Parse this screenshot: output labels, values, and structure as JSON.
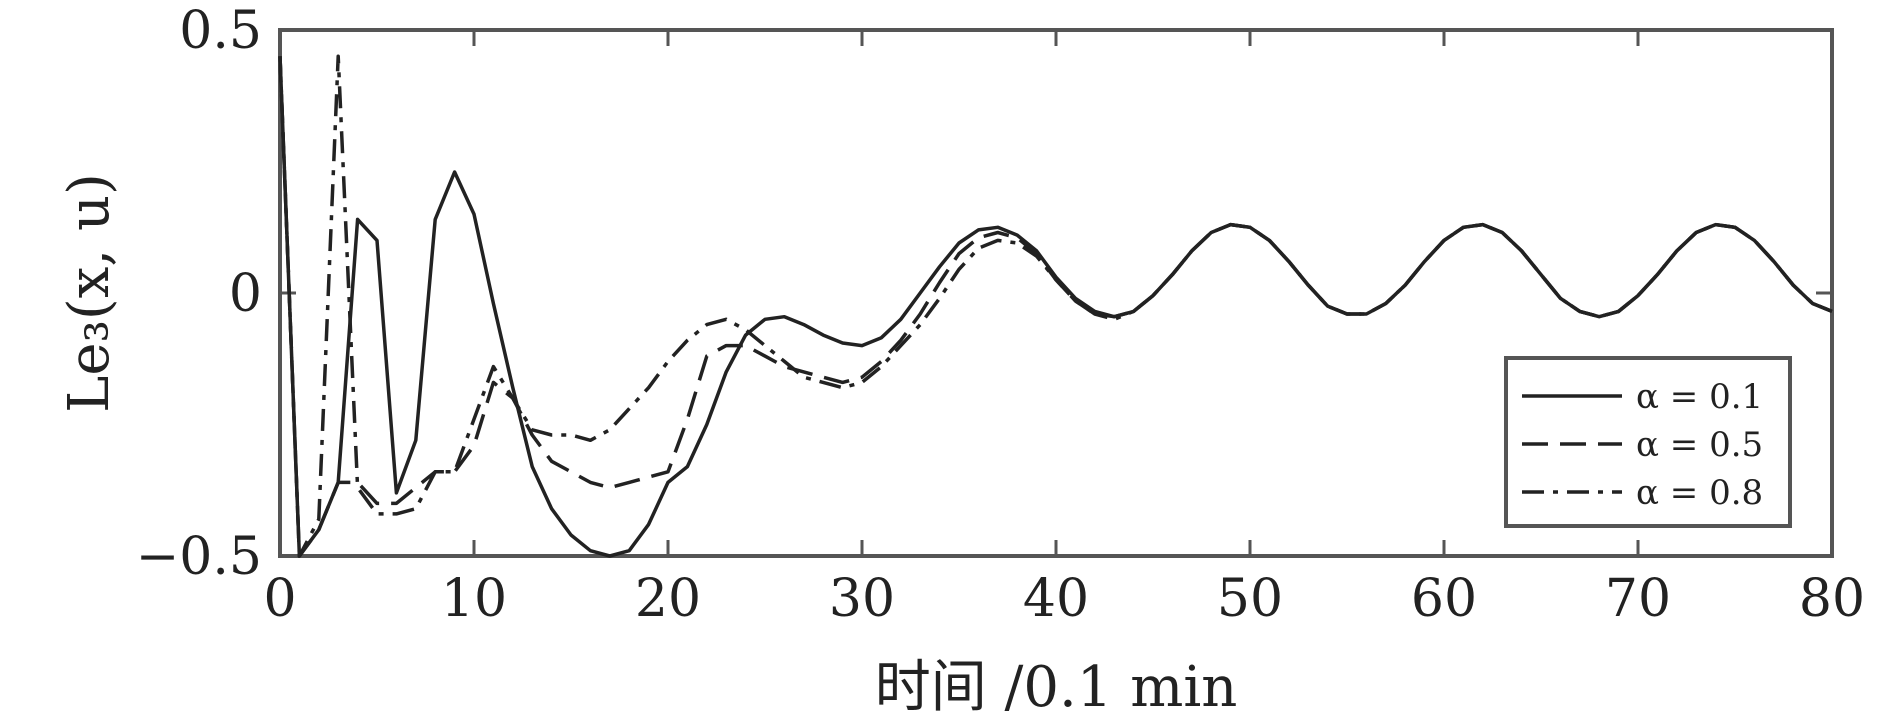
{
  "chart_data": {
    "type": "line",
    "xlabel": "时间 /0.1 min",
    "ylabel": "Le₃(x, u)",
    "xlim": [
      0,
      80
    ],
    "ylim": [
      -0.5,
      0.5
    ],
    "xticks": [
      0,
      10,
      20,
      30,
      40,
      50,
      60,
      70,
      80
    ],
    "xtick_labels": [
      "0",
      "10",
      "20",
      "30",
      "40",
      "50",
      "60",
      "70",
      "80"
    ],
    "yticks": [
      -0.5,
      0,
      0.5
    ],
    "ytick_labels": [
      "−0.5",
      "0",
      "0.5"
    ],
    "grid": false,
    "legend_position": "right",
    "series": [
      {
        "name": "α = 0.1",
        "style": "solid",
        "x": [
          0,
          1,
          2,
          3,
          4,
          5,
          6,
          7,
          8,
          9,
          10,
          11,
          12,
          13,
          14,
          15,
          16,
          17,
          18,
          19,
          20,
          21,
          22,
          23,
          24,
          25,
          26,
          27,
          28,
          29,
          30,
          31,
          32,
          33,
          34,
          35,
          36,
          37,
          38,
          39,
          40,
          41,
          42,
          43,
          44,
          45,
          46,
          47,
          48,
          49,
          50,
          51,
          52,
          53,
          54,
          55,
          56,
          57,
          58,
          59,
          60,
          61,
          62,
          63,
          64,
          65,
          66,
          67,
          68,
          69,
          70,
          71,
          72,
          73,
          74,
          75,
          76,
          77,
          78,
          79,
          80
        ],
        "values": [
          0.45,
          -0.5,
          -0.45,
          -0.36,
          0.14,
          0.1,
          -0.38,
          -0.28,
          0.14,
          0.23,
          0.15,
          -0.02,
          -0.18,
          -0.33,
          -0.41,
          -0.46,
          -0.49,
          -0.5,
          -0.49,
          -0.44,
          -0.36,
          -0.33,
          -0.25,
          -0.15,
          -0.08,
          -0.05,
          -0.045,
          -0.06,
          -0.08,
          -0.095,
          -0.1,
          -0.085,
          -0.05,
          0.0,
          0.05,
          0.095,
          0.12,
          0.125,
          0.11,
          0.08,
          0.03,
          -0.01,
          -0.035,
          -0.045,
          -0.035,
          -0.005,
          0.035,
          0.08,
          0.115,
          0.13,
          0.125,
          0.1,
          0.06,
          0.015,
          -0.025,
          -0.04,
          -0.04,
          -0.02,
          0.015,
          0.06,
          0.1,
          0.125,
          0.13,
          0.115,
          0.08,
          0.035,
          -0.01,
          -0.035,
          -0.045,
          -0.035,
          -0.005,
          0.035,
          0.08,
          0.115,
          0.13,
          0.125,
          0.1,
          0.06,
          0.015,
          -0.02,
          -0.035
        ]
      },
      {
        "name": "α = 0.5",
        "style": "dashed",
        "x": [
          0,
          1,
          2,
          3,
          4,
          5,
          6,
          7,
          8,
          9,
          10,
          11,
          12,
          13,
          14,
          15,
          16,
          17,
          18,
          19,
          20,
          21,
          22,
          23,
          24,
          25,
          26,
          27,
          28,
          29,
          30,
          31,
          32,
          33,
          34,
          35,
          36,
          37,
          38,
          39,
          40,
          41,
          42,
          43,
          44,
          45,
          46,
          47,
          48,
          49,
          50,
          51,
          52,
          53,
          54,
          55,
          56,
          57,
          58,
          59,
          60,
          61,
          62,
          63,
          64,
          65,
          66,
          67,
          68,
          69,
          70,
          71,
          72,
          73,
          74,
          75,
          76,
          77,
          78,
          79,
          80
        ],
        "values": [
          0.45,
          -0.5,
          -0.45,
          -0.36,
          -0.36,
          -0.4,
          -0.4,
          -0.37,
          -0.34,
          -0.34,
          -0.29,
          -0.17,
          -0.2,
          -0.27,
          -0.32,
          -0.34,
          -0.36,
          -0.37,
          -0.36,
          -0.35,
          -0.34,
          -0.24,
          -0.12,
          -0.1,
          -0.1,
          -0.12,
          -0.14,
          -0.15,
          -0.16,
          -0.17,
          -0.16,
          -0.13,
          -0.09,
          -0.04,
          0.02,
          0.075,
          0.105,
          0.115,
          0.105,
          0.075,
          0.025,
          -0.015,
          -0.04,
          -0.045,
          -0.035,
          -0.005,
          0.035,
          0.08,
          0.115,
          0.13,
          0.125,
          0.1,
          0.06,
          0.015,
          -0.025,
          -0.04,
          -0.04,
          -0.02,
          0.015,
          0.06,
          0.1,
          0.125,
          0.13,
          0.115,
          0.08,
          0.035,
          -0.01,
          -0.035,
          -0.045,
          -0.035,
          -0.005,
          0.035,
          0.08,
          0.115,
          0.13,
          0.125,
          0.1,
          0.06,
          0.015,
          -0.02,
          -0.035
        ]
      },
      {
        "name": "α = 0.8",
        "style": "dashdot",
        "x": [
          0,
          1,
          2,
          3,
          4,
          5,
          6,
          7,
          8,
          9,
          10,
          11,
          12,
          13,
          14,
          15,
          16,
          17,
          18,
          19,
          20,
          21,
          22,
          23,
          24,
          25,
          26,
          27,
          28,
          29,
          30,
          31,
          32,
          33,
          34,
          35,
          36,
          37,
          38,
          39,
          40,
          41,
          42,
          43,
          44,
          45,
          46,
          47,
          48,
          49,
          50,
          51,
          52,
          53,
          54,
          55,
          56,
          57,
          58,
          59,
          60,
          61,
          62,
          63,
          64,
          65,
          66,
          67,
          68,
          69,
          70,
          71,
          72,
          73,
          74,
          75,
          76,
          77,
          78,
          79,
          80
        ],
        "values": [
          0.45,
          -0.5,
          -0.43,
          0.45,
          -0.37,
          -0.42,
          -0.42,
          -0.41,
          -0.34,
          -0.34,
          -0.24,
          -0.14,
          -0.2,
          -0.26,
          -0.27,
          -0.27,
          -0.28,
          -0.26,
          -0.22,
          -0.18,
          -0.13,
          -0.09,
          -0.06,
          -0.05,
          -0.07,
          -0.1,
          -0.13,
          -0.16,
          -0.17,
          -0.18,
          -0.17,
          -0.14,
          -0.1,
          -0.06,
          -0.01,
          0.045,
          0.085,
          0.1,
          0.095,
          0.07,
          0.025,
          -0.015,
          -0.04,
          -0.05,
          -0.035,
          -0.005,
          0.035,
          0.08,
          0.115,
          0.13,
          0.125,
          0.1,
          0.06,
          0.015,
          -0.025,
          -0.04,
          -0.04,
          -0.02,
          0.015,
          0.06,
          0.1,
          0.125,
          0.13,
          0.115,
          0.08,
          0.035,
          -0.01,
          -0.035,
          -0.045,
          -0.035,
          -0.005,
          0.035,
          0.08,
          0.115,
          0.13,
          0.125,
          0.1,
          0.06,
          0.015,
          -0.02,
          -0.035
        ]
      }
    ],
    "colors": {
      "line": "#222222",
      "axis": "#555555",
      "background": "#ffffff"
    }
  }
}
